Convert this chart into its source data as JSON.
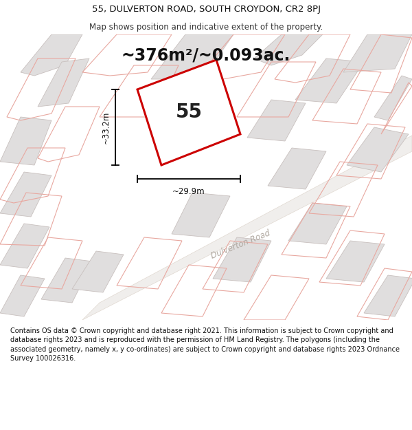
{
  "title_line1": "55, DULVERTON ROAD, SOUTH CROYDON, CR2 8PJ",
  "title_line2": "Map shows position and indicative extent of the property.",
  "area_text": "~376m²/~0.093ac.",
  "property_number": "55",
  "width_label": "~29.9m",
  "height_label": "~33.2m",
  "road_label": "Dulverton Road",
  "footer_text": "Contains OS data © Crown copyright and database right 2021. This information is subject to Crown copyright and database rights 2023 and is reproduced with the permission of HM Land Registry. The polygons (including the associated geometry, namely x, y co-ordinates) are subject to Crown copyright and database rights 2023 Ordnance Survey 100026316.",
  "map_bg": "#ffffff",
  "building_fill": "#e0dede",
  "building_stroke": "#c8c0be",
  "pink_stroke": "#e8a8a0",
  "red_color": "#cc0000",
  "title_bg": "#ffffff",
  "footer_bg": "#ffffff"
}
